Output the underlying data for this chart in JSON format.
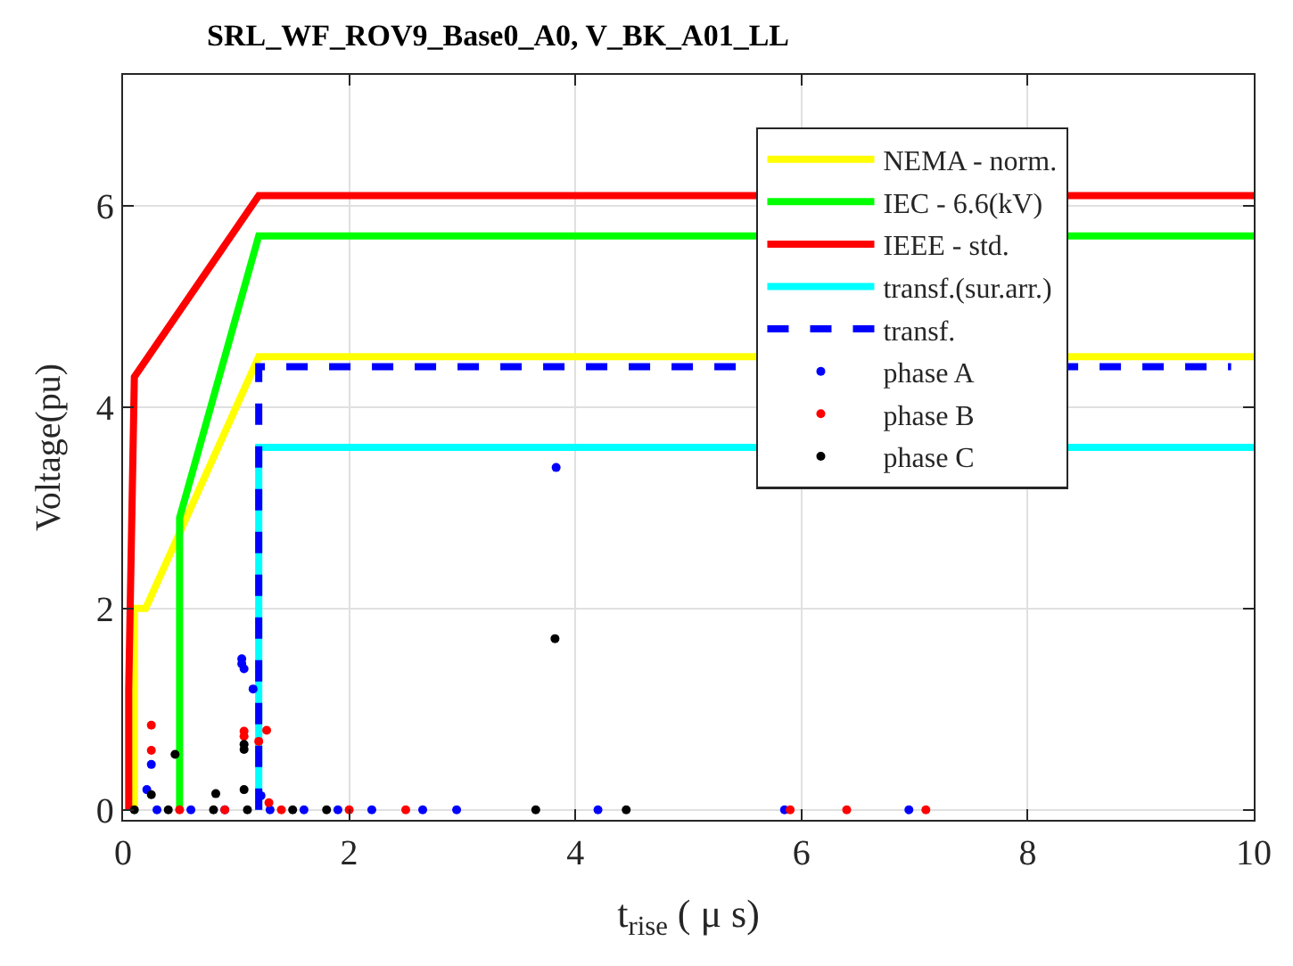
{
  "chart_data": {
    "type": "line",
    "title": "SRL_WF_ROV9_Base0_A0, V_BK_A01_LL",
    "xlabel": "t$_{rise}$ ( μ s)",
    "ylabel": "Voltage(pu)",
    "xlim": [
      0,
      10
    ],
    "xticks": [
      0,
      2,
      4,
      6,
      8,
      10
    ],
    "ylim": [
      -0.1,
      7.3
    ],
    "yticks": [
      0,
      2,
      4,
      6
    ],
    "grid": true,
    "legend": "top right",
    "series": [
      {
        "name": "NEMA - norm.",
        "color": "#ffff00",
        "marker": "none",
        "line_style": "solid",
        "x": [
          0.1,
          0.1,
          0.2,
          1.2,
          10
        ],
        "values": [
          0,
          2,
          2,
          4.5,
          4.5
        ]
      },
      {
        "name": "IEC - 6.6(kV)",
        "color": "#00ff00",
        "marker": "none",
        "line_style": "solid",
        "x": [
          0.5,
          0.5,
          1.2,
          10
        ],
        "values": [
          0,
          2.9,
          5.7,
          5.7
        ]
      },
      {
        "name": "IEEE - std.",
        "color": "#ff0000",
        "marker": "none",
        "line_style": "solid",
        "x": [
          0.05,
          0.05,
          0.1,
          1.2,
          10
        ],
        "values": [
          0,
          1.2,
          4.3,
          6.1,
          6.1
        ]
      },
      {
        "name": "transf.(sur.arr.)",
        "color": "#00ffff",
        "marker": "none",
        "line_style": "solid",
        "x": [
          1.2,
          1.2,
          10
        ],
        "values": [
          0,
          3.6,
          3.6
        ]
      },
      {
        "name": "transf.",
        "color": "#0000ff",
        "marker": "none",
        "line_style": "dashed",
        "x": [
          1.2,
          1.2,
          9.8
        ],
        "values": [
          0,
          4.4,
          4.4
        ]
      },
      {
        "name": "phase A",
        "color": "#0000ff",
        "type": "scatter",
        "marker": "circle",
        "x": [
          3.83,
          1.05,
          1.05,
          1.07,
          1.15,
          0.25,
          0.21,
          1.22,
          0.3,
          0.6,
          0.9,
          1.3,
          1.6,
          1.9,
          2.2,
          2.65,
          2.95,
          4.2,
          5.85,
          6.95
        ],
        "values": [
          3.4,
          1.5,
          1.45,
          1.4,
          1.2,
          0.45,
          0.2,
          0.14,
          0,
          0,
          0,
          0,
          0,
          0,
          0,
          0,
          0,
          0,
          0,
          0
        ]
      },
      {
        "name": "phase B",
        "color": "#ff0000",
        "type": "scatter",
        "marker": "circle",
        "x": [
          0.25,
          0.25,
          1.07,
          1.07,
          1.27,
          1.2,
          1.29,
          0.5,
          0.9,
          1.4,
          2.0,
          2.5,
          5.9,
          6.4,
          7.1
        ],
        "values": [
          0.84,
          0.59,
          0.73,
          0.78,
          0.79,
          0.68,
          0.07,
          0,
          0,
          0,
          0,
          0,
          0,
          0,
          0
        ]
      },
      {
        "name": "phase C",
        "color": "#000000",
        "type": "scatter",
        "marker": "circle",
        "x": [
          3.82,
          0.46,
          1.07,
          1.07,
          0.82,
          1.07,
          0.25,
          0.1,
          0.4,
          0.8,
          1.1,
          1.5,
          1.8,
          3.65,
          4.45
        ],
        "values": [
          1.7,
          0.55,
          0.6,
          0.65,
          0.16,
          0.2,
          0.15,
          0,
          0,
          0,
          0,
          0,
          0,
          0,
          0
        ]
      }
    ]
  }
}
